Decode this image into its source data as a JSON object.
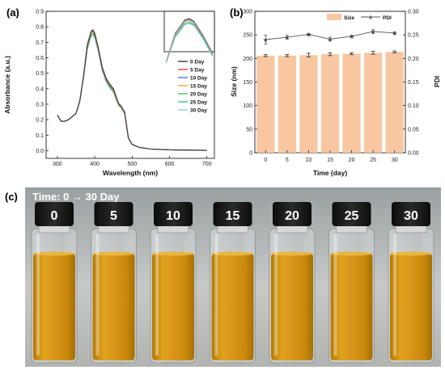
{
  "panels": {
    "a": {
      "label": "(a)",
      "legend": [
        "0 Day",
        "5 Day",
        "10 Day",
        "15 Day",
        "20 Day",
        "25 Day",
        "30 Day"
      ],
      "series_colors": [
        "#3a3a3a",
        "#e0453a",
        "#5b6bd8",
        "#e7a23a",
        "#58b95a",
        "#3fb7b0",
        "#8fd3e8"
      ]
    },
    "b": {
      "label": "(b)",
      "legend_size": "Size",
      "legend_pdi": "PDI",
      "bar_color": "#f8c7a2",
      "line_color": "#555555"
    },
    "c": {
      "label": "(c)",
      "time_label": "Time: 0 → 30 Day",
      "vial_labels": [
        "0",
        "5",
        "10",
        "15",
        "20",
        "25",
        "30"
      ],
      "liquid_color": "#d89a12"
    }
  },
  "chart_data": [
    {
      "type": "line",
      "title": "",
      "xlabel": "Wavelength (nm)",
      "ylabel": "Absorbance (a.u.)",
      "xlim": [
        270,
        720
      ],
      "ylim": [
        -0.05,
        0.9
      ],
      "xticks": [
        300,
        400,
        500,
        600,
        700
      ],
      "yticks": [
        0.0,
        0.1,
        0.2,
        0.3,
        0.4,
        0.5,
        0.6,
        0.7,
        0.8,
        0.9
      ],
      "x": [
        300,
        310,
        320,
        330,
        340,
        350,
        360,
        370,
        380,
        390,
        395,
        400,
        410,
        420,
        430,
        440,
        450,
        460,
        465,
        470,
        480,
        490,
        500,
        520,
        550,
        600,
        650,
        700
      ],
      "series": [
        {
          "name": "0 Day",
          "values": [
            0.23,
            0.19,
            0.19,
            0.2,
            0.22,
            0.24,
            0.32,
            0.48,
            0.68,
            0.77,
            0.78,
            0.76,
            0.66,
            0.54,
            0.47,
            0.43,
            0.4,
            0.33,
            0.3,
            0.29,
            0.25,
            0.08,
            0.04,
            0.02,
            0.01,
            0.005,
            0.003,
            0.002
          ]
        },
        {
          "name": "5 Day",
          "values": [
            0.23,
            0.19,
            0.19,
            0.2,
            0.22,
            0.24,
            0.32,
            0.48,
            0.68,
            0.765,
            0.775,
            0.755,
            0.655,
            0.535,
            0.465,
            0.425,
            0.395,
            0.325,
            0.297,
            0.287,
            0.248,
            0.08,
            0.04,
            0.02,
            0.01,
            0.005,
            0.003,
            0.002
          ]
        },
        {
          "name": "10 Day",
          "values": [
            0.23,
            0.19,
            0.19,
            0.2,
            0.22,
            0.24,
            0.32,
            0.48,
            0.68,
            0.765,
            0.775,
            0.755,
            0.655,
            0.535,
            0.465,
            0.425,
            0.395,
            0.325,
            0.297,
            0.287,
            0.248,
            0.08,
            0.04,
            0.02,
            0.01,
            0.005,
            0.003,
            0.002
          ]
        },
        {
          "name": "15 Day",
          "values": [
            0.23,
            0.19,
            0.19,
            0.2,
            0.22,
            0.24,
            0.32,
            0.48,
            0.67,
            0.76,
            0.77,
            0.75,
            0.65,
            0.53,
            0.46,
            0.42,
            0.39,
            0.32,
            0.295,
            0.285,
            0.245,
            0.08,
            0.04,
            0.02,
            0.01,
            0.005,
            0.003,
            0.002
          ]
        },
        {
          "name": "20 Day",
          "values": [
            0.23,
            0.19,
            0.19,
            0.2,
            0.22,
            0.24,
            0.32,
            0.47,
            0.66,
            0.75,
            0.76,
            0.74,
            0.645,
            0.525,
            0.455,
            0.415,
            0.385,
            0.318,
            0.292,
            0.282,
            0.243,
            0.08,
            0.04,
            0.02,
            0.01,
            0.005,
            0.003,
            0.002
          ]
        },
        {
          "name": "25 Day",
          "values": [
            0.23,
            0.19,
            0.19,
            0.2,
            0.22,
            0.24,
            0.32,
            0.47,
            0.655,
            0.74,
            0.75,
            0.735,
            0.64,
            0.52,
            0.45,
            0.41,
            0.38,
            0.315,
            0.29,
            0.28,
            0.24,
            0.08,
            0.04,
            0.02,
            0.01,
            0.005,
            0.003,
            0.002
          ]
        },
        {
          "name": "30 Day",
          "values": [
            0.23,
            0.19,
            0.19,
            0.2,
            0.22,
            0.24,
            0.32,
            0.47,
            0.65,
            0.735,
            0.745,
            0.73,
            0.635,
            0.515,
            0.445,
            0.405,
            0.375,
            0.312,
            0.288,
            0.278,
            0.238,
            0.08,
            0.04,
            0.02,
            0.01,
            0.005,
            0.003,
            0.002
          ]
        }
      ]
    },
    {
      "type": "bar",
      "title": "",
      "xlabel": "Time (day)",
      "ylabel": "Size (nm)",
      "ylabel_right": "PDI",
      "categories": [
        "0",
        "5",
        "10",
        "15",
        "20",
        "25",
        "30"
      ],
      "ylim": [
        0,
        300
      ],
      "yticks": [
        0,
        50,
        100,
        150,
        200,
        250,
        300
      ],
      "ylim_right": [
        0.0,
        0.3
      ],
      "yticks_right": [
        "0.00",
        "0.05",
        "0.10",
        "0.15",
        "0.20",
        "0.25",
        "0.30"
      ],
      "series": [
        {
          "name": "Size",
          "kind": "bar",
          "values": [
            206,
            206,
            207,
            209,
            210,
            212,
            214
          ],
          "errors": [
            2,
            2,
            4,
            3,
            2,
            3,
            2
          ]
        },
        {
          "name": "PDI",
          "kind": "line",
          "values": [
            0.24,
            0.245,
            0.251,
            0.241,
            0.247,
            0.257,
            0.254
          ],
          "errors": [
            0.009,
            0.004,
            0.002,
            0.004,
            0.002,
            0.004,
            0.002
          ]
        }
      ]
    }
  ]
}
